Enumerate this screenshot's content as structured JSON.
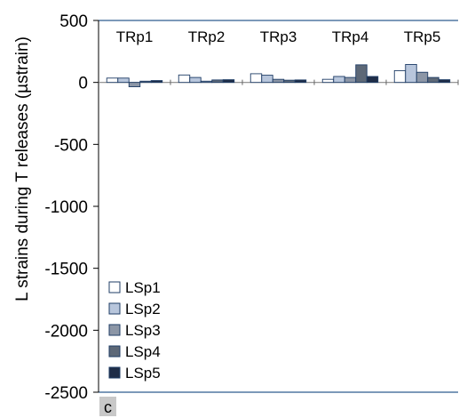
{
  "panel_tag": "c",
  "chart_data": {
    "type": "bar",
    "ylabel": "L strains during T releases (µstrain)",
    "ylim": [
      -2500,
      500
    ],
    "yticks": [
      500,
      0,
      -500,
      -1000,
      -1500,
      -2000,
      -2500
    ],
    "categories": [
      "TRp1",
      "TRp2",
      "TRp3",
      "TRp4",
      "TRp5"
    ],
    "series": [
      {
        "name": "LSp1",
        "color": "#ffffff",
        "values": [
          35,
          60,
          70,
          25,
          95
        ]
      },
      {
        "name": "LSp2",
        "color": "#b8c6dc",
        "values": [
          35,
          40,
          58,
          48,
          145
        ]
      },
      {
        "name": "LSp3",
        "color": "#8c96a6",
        "values": [
          -35,
          10,
          25,
          40,
          82
        ]
      },
      {
        "name": "LSp4",
        "color": "#5d6877",
        "values": [
          10,
          20,
          18,
          142,
          40
        ]
      },
      {
        "name": "LSp5",
        "color": "#1f2d47",
        "values": [
          15,
          22,
          20,
          48,
          22
        ]
      }
    ],
    "legend_position": "bottom-left",
    "grid": false,
    "border_color": "#2e5c8f"
  }
}
